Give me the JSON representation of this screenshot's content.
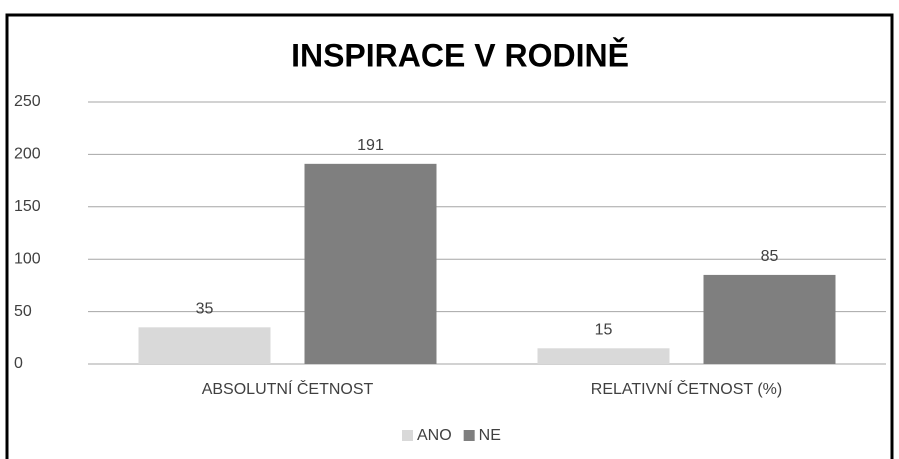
{
  "chart_data": {
    "type": "bar",
    "title": "INSPIRACE V RODINĚ",
    "categories": [
      "ABSOLUTNÍ ČETNOST",
      "RELATIVNÍ ČETNOST (%)"
    ],
    "series": [
      {
        "name": "ANO",
        "color": "#d9d9d9",
        "values": [
          35,
          15
        ]
      },
      {
        "name": "NE",
        "color": "#7f7f7f",
        "values": [
          191,
          85
        ]
      }
    ],
    "ylim": [
      0,
      250
    ],
    "yticks": [
      0,
      50,
      100,
      150,
      200,
      250
    ],
    "grid": true,
    "legend": "bottom"
  }
}
